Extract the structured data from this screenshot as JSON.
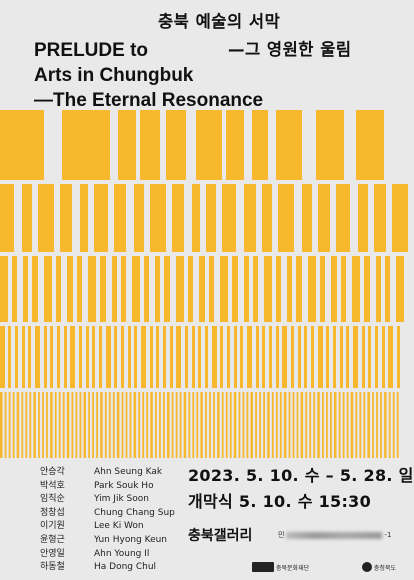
{
  "title": {
    "korean_line1": "충북 예술의 서막",
    "korean_line2": "—그 영원한 울림",
    "english_line1": "PRELUDE to",
    "english_line2": "Arts in Chungbuk",
    "english_line3": "—The Eternal Resonance"
  },
  "artists": [
    {
      "kr": "안승각",
      "en": "Ahn Seung Kak"
    },
    {
      "kr": "박석호",
      "en": "Park Souk Ho"
    },
    {
      "kr": "임직순",
      "en": "Yim Jik Soon"
    },
    {
      "kr": "정창섭",
      "en": "Chung Chang Sup"
    },
    {
      "kr": "이기원",
      "en": "Lee Ki Won"
    },
    {
      "kr": "윤형근",
      "en": "Yun Hyong Keun"
    },
    {
      "kr": "안영일",
      "en": "Ahn Young Il"
    },
    {
      "kr": "하동철",
      "en": "Ha Dong Chul"
    }
  ],
  "event": {
    "date": "2023. 5. 10. 수 – 5. 28. 일",
    "opening": "개막식  5. 10. 수  15:30",
    "venue": "충북갤러리",
    "address_prefix": "민",
    "address_suffix": "-1"
  },
  "colors": {
    "background": "#e9e9e9",
    "accent": "#f7b82e",
    "text": "#111111"
  },
  "logos": [
    {
      "icon": "culture-foundation-logo-icon",
      "label": "충북문화재단"
    },
    {
      "icon": "chungbuk-province-logo-icon",
      "label": "충청북도"
    }
  ]
}
